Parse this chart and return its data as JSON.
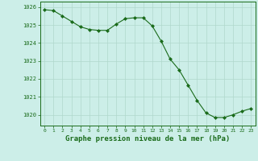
{
  "x": [
    0,
    1,
    2,
    3,
    4,
    5,
    6,
    7,
    8,
    9,
    10,
    11,
    12,
    13,
    14,
    15,
    16,
    17,
    18,
    19,
    20,
    21,
    22,
    23
  ],
  "y": [
    1025.85,
    1025.8,
    1025.5,
    1025.2,
    1024.9,
    1024.75,
    1024.7,
    1024.7,
    1025.05,
    1025.35,
    1025.4,
    1025.4,
    1024.95,
    1024.1,
    1023.1,
    1022.5,
    1021.65,
    1020.8,
    1020.1,
    1019.85,
    1019.85,
    1020.0,
    1020.2,
    1020.35
  ],
  "line_color": "#1a6b1a",
  "marker_color": "#1a6b1a",
  "bg_color": "#cceee8",
  "grid_color": "#b0d8cc",
  "xlabel": "Graphe pression niveau de la mer (hPa)",
  "xlabel_color": "#1a6b1a",
  "tick_color": "#1a6b1a",
  "ylabel_ticks": [
    1020,
    1021,
    1022,
    1023,
    1024,
    1025,
    1026
  ],
  "xlim": [
    -0.5,
    23.5
  ],
  "ylim": [
    1019.4,
    1026.3
  ],
  "fig_width": 3.2,
  "fig_height": 2.0,
  "dpi": 100
}
